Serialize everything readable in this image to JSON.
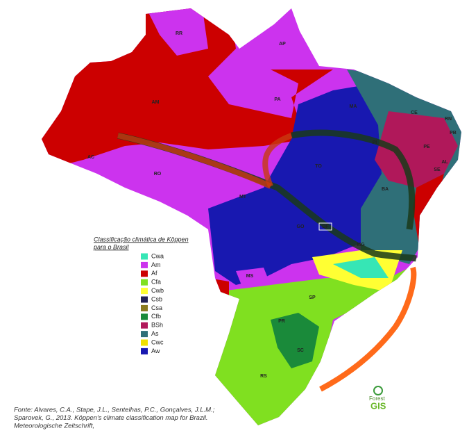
{
  "map": {
    "states": [
      {
        "label": "RR"
      },
      {
        "label": "AP"
      },
      {
        "label": "AM"
      },
      {
        "label": "PA"
      },
      {
        "label": "MA"
      },
      {
        "label": "CE"
      },
      {
        "label": "RN"
      },
      {
        "label": "PB"
      },
      {
        "label": "PE"
      },
      {
        "label": "AL"
      },
      {
        "label": "SE"
      },
      {
        "label": "PI"
      },
      {
        "label": "BA"
      },
      {
        "label": "AC"
      },
      {
        "label": "RO"
      },
      {
        "label": "TO"
      },
      {
        "label": "MT"
      },
      {
        "label": "GO"
      },
      {
        "label": "DF"
      },
      {
        "label": "MG"
      },
      {
        "label": "MS"
      },
      {
        "label": "SP"
      },
      {
        "label": "PR"
      },
      {
        "label": "SC"
      },
      {
        "label": "RS"
      }
    ]
  },
  "legend": {
    "title": [
      "Classificação climática de Köppen",
      "para o Brasil"
    ],
    "items": [
      {
        "label": "Cwa",
        "color": "#36e6b5"
      },
      {
        "label": "Am",
        "color": "#cc33ee"
      },
      {
        "label": "Af",
        "color": "#cc0000"
      },
      {
        "label": "Cfa",
        "color": "#80e020"
      },
      {
        "label": "Cwb",
        "color": "#ffff33"
      },
      {
        "label": "Csb",
        "color": "#222255"
      },
      {
        "label": "Csa",
        "color": "#8a7a20"
      },
      {
        "label": "Cfb",
        "color": "#1a8a3a"
      },
      {
        "label": "BSh",
        "color": "#b0185a"
      },
      {
        "label": "As",
        "color": "#2f6f78"
      },
      {
        "label": "Cwc",
        "color": "#f0e000"
      },
      {
        "label": "Aw",
        "color": "#1818b0"
      }
    ]
  },
  "source": [
    "Fonte: Alvares, C.A., Stape, J.L., Sentelhas, P.C., Gonçalves, J.L.M.;",
    "Sparovek, G., 2013. Köppen's climate classification map for Brazil.",
    "Meteorologische Zeitschrift,"
  ],
  "logo": {
    "line1": "Forest",
    "line2": "GIS"
  }
}
